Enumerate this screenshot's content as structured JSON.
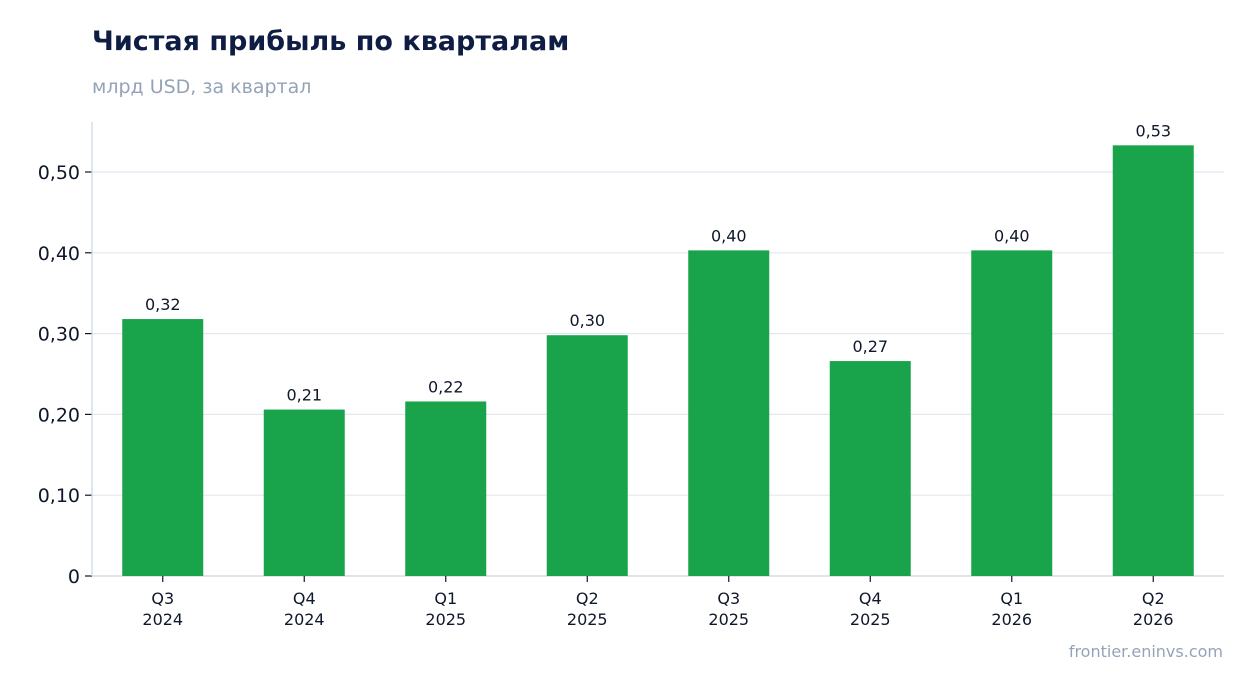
{
  "chart_data": {
    "type": "bar",
    "title": "Чистая прибыль по кварталам",
    "subtitle": "млрд USD, за квартал",
    "categories": [
      [
        "Q3",
        "2024"
      ],
      [
        "Q4",
        "2024"
      ],
      [
        "Q1",
        "2025"
      ],
      [
        "Q2",
        "2025"
      ],
      [
        "Q3",
        "2025"
      ],
      [
        "Q4",
        "2025"
      ],
      [
        "Q1",
        "2026"
      ],
      [
        "Q2",
        "2026"
      ]
    ],
    "values": [
      0.318,
      0.206,
      0.216,
      0.298,
      0.403,
      0.266,
      0.403,
      0.533
    ],
    "data_labels": [
      "0,32",
      "0,21",
      "0,22",
      "0,30",
      "0,40",
      "0,27",
      "0,40",
      "0,53"
    ],
    "yticks": [
      0,
      0.1,
      0.2,
      0.3,
      0.4,
      0.5
    ],
    "ytick_labels": [
      "0",
      "0,10",
      "0,20",
      "0,30",
      "0,40",
      "0,50"
    ],
    "ylim": [
      0,
      0.56
    ],
    "grid": true,
    "colors": {
      "bar": "#19a34a",
      "grid": "#e2e8f0",
      "axis": "#cbd5e1",
      "text": "#0f172a",
      "title": "#0f1d45",
      "muted": "#94a3b8"
    }
  },
  "footer": {
    "source": "frontier.eninvs.com"
  }
}
